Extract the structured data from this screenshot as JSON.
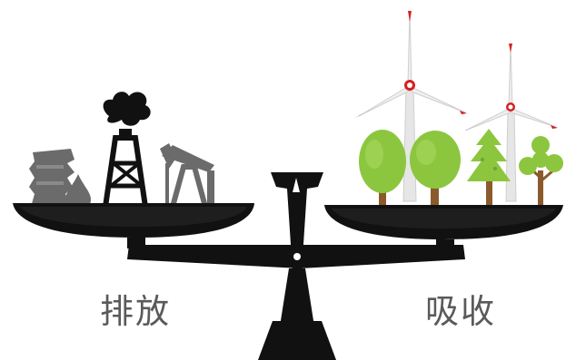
{
  "labels": {
    "left": "排放",
    "right": "吸收"
  },
  "icons": {
    "left_pan": [
      "factory-icon",
      "oil-drop-icon",
      "oil-derrick-icon",
      "pumpjack-icon"
    ],
    "right_pan": [
      "tree-icon",
      "tree-icon",
      "tree-icon",
      "tree-icon",
      "wind-turbine-icon",
      "wind-turbine-icon"
    ]
  },
  "colors": {
    "scale": "#111111",
    "emission_gray": "#6b6b6b",
    "tree_green": "#8cc63f",
    "trunk": "#8b5a2b",
    "turbine_accent": "#d62020",
    "label": "#5a5a5a"
  }
}
